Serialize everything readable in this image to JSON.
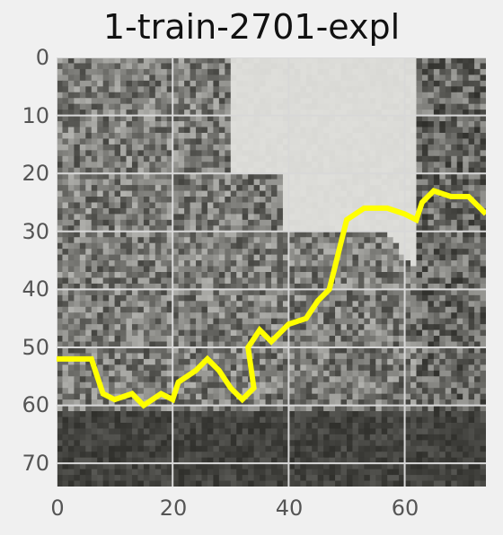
{
  "title": "1-train-2701-expl",
  "x_ticks": [
    "0",
    "20",
    "40",
    "60"
  ],
  "y_ticks": [
    "0",
    "10",
    "20",
    "30",
    "40",
    "50",
    "60",
    "70"
  ],
  "colors": {
    "background": "#f0f0f0",
    "grid": "#d8d8d8",
    "overlay": "#ffff00",
    "sky": "#dedede"
  },
  "chart_data": {
    "type": "heatmap",
    "title": "1-train-2701-expl",
    "xlim": [
      0,
      74
    ],
    "ylim": [
      74,
      0
    ],
    "x_ticks": [
      0,
      20,
      40,
      60
    ],
    "y_ticks": [
      0,
      10,
      20,
      30,
      40,
      50,
      60,
      70
    ],
    "grid": true,
    "colormap": "gray",
    "overlay_color": "#ffff00",
    "overlay_path": [
      [
        0,
        52
      ],
      [
        6,
        52
      ],
      [
        7,
        55
      ],
      [
        8,
        58
      ],
      [
        10,
        59
      ],
      [
        13,
        58
      ],
      [
        15,
        60
      ],
      [
        18,
        58
      ],
      [
        20,
        59
      ],
      [
        21,
        56
      ],
      [
        24,
        54
      ],
      [
        26,
        52
      ],
      [
        28,
        54
      ],
      [
        30,
        57
      ],
      [
        32,
        59
      ],
      [
        34,
        57
      ],
      [
        33,
        50
      ],
      [
        35,
        47
      ],
      [
        37,
        49
      ],
      [
        40,
        46
      ],
      [
        43,
        45
      ],
      [
        45,
        42
      ],
      [
        47,
        40
      ],
      [
        48,
        36
      ],
      [
        49,
        32
      ],
      [
        50,
        28
      ],
      [
        53,
        26
      ],
      [
        57,
        26
      ],
      [
        60,
        27
      ],
      [
        62,
        28
      ],
      [
        63,
        25
      ],
      [
        65,
        23
      ],
      [
        68,
        24
      ],
      [
        71,
        24
      ],
      [
        74,
        27
      ]
    ]
  }
}
